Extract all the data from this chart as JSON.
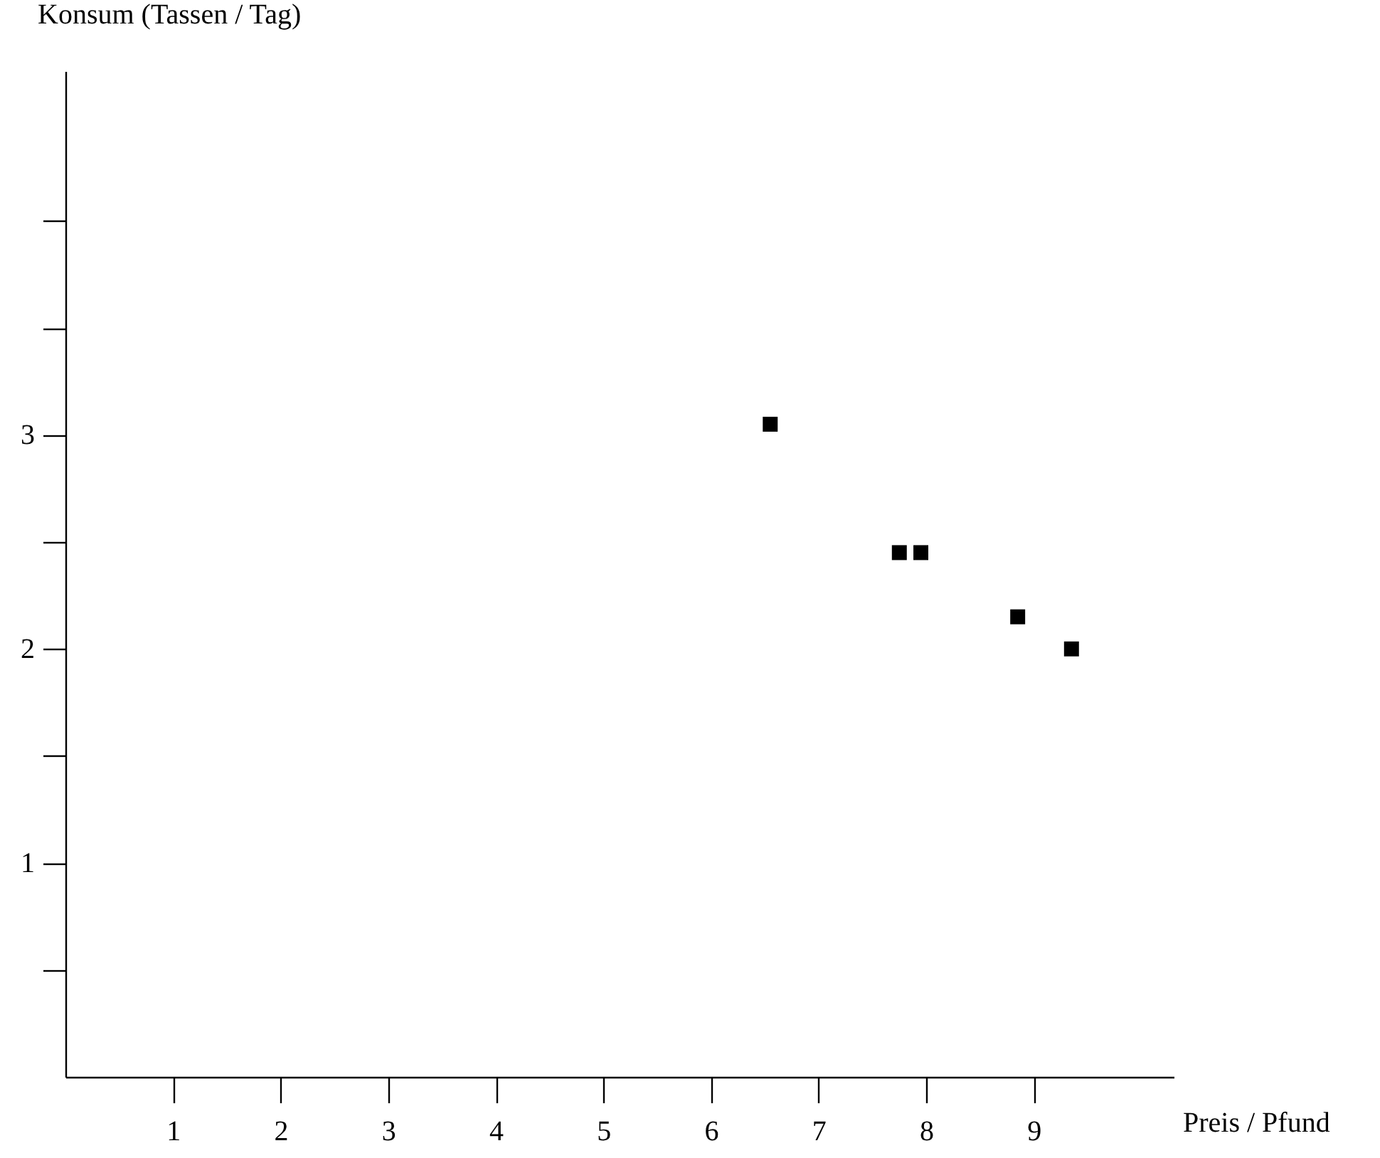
{
  "chart_data": {
    "type": "scatter",
    "xlabel": "Preis / Pfund",
    "ylabel": "Konsum (Tassen / Tag)",
    "x": [
      6.55,
      7.75,
      7.95,
      8.85,
      9.35
    ],
    "series": [
      {
        "color": "#000000",
        "values": [
          3.05,
          2.45,
          2.45,
          2.15,
          2.0
        ]
      }
    ],
    "marker": "square",
    "grid": false,
    "xlim": [
      0,
      10.3
    ],
    "ylim": [
      0,
      4.7
    ],
    "xticks": [
      1,
      2,
      3,
      4,
      5,
      6,
      7,
      8,
      9
    ],
    "yticks": [
      {
        "value": 0.5,
        "label": null
      },
      1,
      {
        "value": 1.5,
        "label": null
      },
      2,
      {
        "value": 2.5,
        "label": null
      },
      3,
      {
        "value": 3.5,
        "label": null
      },
      {
        "value": 4,
        "label": null
      }
    ]
  }
}
